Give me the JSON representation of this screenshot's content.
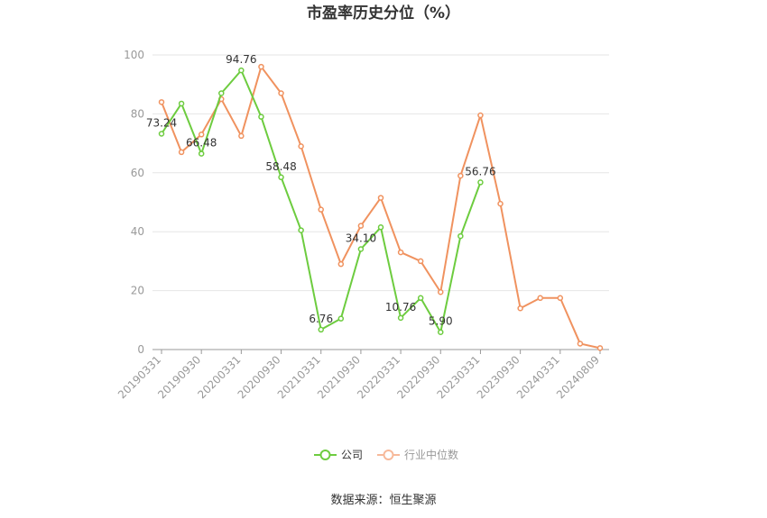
{
  "chart_data": {
    "type": "line",
    "title": "市盈率历史分位（%）",
    "source": "数据来源：恒生聚源",
    "ylim": [
      0,
      100
    ],
    "yticks": [
      0,
      20,
      40,
      60,
      80,
      100
    ],
    "x_tick_labels": [
      "20190331",
      "20190930",
      "20200331",
      "20200930",
      "20210331",
      "20210930",
      "20220331",
      "20220930",
      "20230331",
      "20230930",
      "20240331",
      "20240809"
    ],
    "x": [
      "20190331",
      "20190630",
      "20190930",
      "20191231",
      "20200331",
      "20200630",
      "20200930",
      "20201231",
      "20210331",
      "20210630",
      "20210930",
      "20211231",
      "20220331",
      "20220630",
      "20220930",
      "20221231",
      "20230331",
      "20230630",
      "20230930",
      "20231231",
      "20240331",
      "20240630",
      "20240809"
    ],
    "series": [
      {
        "name": "公司",
        "color": "#6dcc3f",
        "values": [
          73.24,
          83.5,
          66.48,
          87.0,
          94.76,
          79.0,
          58.48,
          40.5,
          6.76,
          10.5,
          34.1,
          41.5,
          10.76,
          17.5,
          5.9,
          38.5,
          56.76,
          null,
          null,
          null,
          null,
          null,
          null
        ],
        "labels": {
          "0": "73.24",
          "2": "66.48",
          "4": "94.76",
          "6": "58.48",
          "8": "6.76",
          "10": "34.10",
          "12": "10.76",
          "14": "5.90",
          "16": "56.76"
        }
      },
      {
        "name": "行业中位数",
        "color": "#f0925f",
        "values": [
          84.0,
          67.0,
          73.0,
          85.0,
          72.5,
          96.0,
          87.0,
          69.0,
          47.5,
          29.0,
          42.0,
          51.5,
          33.0,
          30.0,
          19.5,
          59.0,
          79.5,
          49.5,
          14.0,
          17.5,
          17.5,
          2.0,
          0.5
        ],
        "labels": {}
      }
    ],
    "grid": true,
    "legend": "bottom-center"
  }
}
